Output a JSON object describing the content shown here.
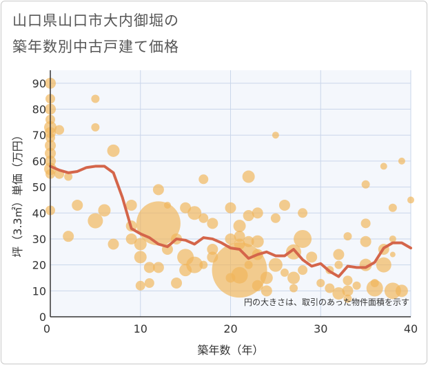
{
  "header": {
    "title_line1": "山口県山口市大内御堀の",
    "title_line2": "築年数別中古戸建て価格"
  },
  "colors": {
    "bubble": "#f0b55a",
    "line": "#d4654a",
    "grid": "#c9d6ea",
    "plot_bg": "#f4f7fc"
  },
  "chart_data": {
    "type": "scatter",
    "title": "山口県山口市大内御堀の築年数別中古戸建て価格",
    "xlabel": "築年数（年）",
    "ylabel": "坪（3.3㎡）単価（万円）",
    "xlim": [
      0,
      40
    ],
    "ylim": [
      0,
      95
    ],
    "xticks": [
      0,
      10,
      20,
      30,
      40
    ],
    "yticks": [
      0,
      10,
      20,
      30,
      40,
      50,
      60,
      70,
      80,
      90
    ],
    "note": "円の大きさは、取引のあった物件面積を示す",
    "bubbles": [
      {
        "x": 0,
        "y": 90,
        "s": 8
      },
      {
        "x": 0,
        "y": 84,
        "s": 7
      },
      {
        "x": 0,
        "y": 80,
        "s": 8
      },
      {
        "x": 0,
        "y": 76,
        "s": 7
      },
      {
        "x": 0,
        "y": 73,
        "s": 9
      },
      {
        "x": 0,
        "y": 71,
        "s": 8
      },
      {
        "x": 0,
        "y": 69,
        "s": 7
      },
      {
        "x": 0,
        "y": 66,
        "s": 8
      },
      {
        "x": 0,
        "y": 63,
        "s": 8
      },
      {
        "x": 0,
        "y": 60,
        "s": 8
      },
      {
        "x": 0,
        "y": 57,
        "s": 9
      },
      {
        "x": 0,
        "y": 55,
        "s": 7
      },
      {
        "x": 0,
        "y": 41,
        "s": 7
      },
      {
        "x": 1,
        "y": 72,
        "s": 7
      },
      {
        "x": 1,
        "y": 55,
        "s": 7
      },
      {
        "x": 2,
        "y": 54,
        "s": 6
      },
      {
        "x": 2,
        "y": 31,
        "s": 8
      },
      {
        "x": 3,
        "y": 43,
        "s": 8
      },
      {
        "x": 5,
        "y": 84,
        "s": 6
      },
      {
        "x": 5,
        "y": 73,
        "s": 6
      },
      {
        "x": 5,
        "y": 37,
        "s": 11
      },
      {
        "x": 6,
        "y": 41,
        "s": 9
      },
      {
        "x": 7,
        "y": 64,
        "s": 9
      },
      {
        "x": 7,
        "y": 28,
        "s": 8
      },
      {
        "x": 9,
        "y": 43,
        "s": 8
      },
      {
        "x": 9,
        "y": 35,
        "s": 8
      },
      {
        "x": 9,
        "y": 30,
        "s": 8
      },
      {
        "x": 10,
        "y": 28,
        "s": 9
      },
      {
        "x": 10,
        "y": 23,
        "s": 9
      },
      {
        "x": 10,
        "y": 12,
        "s": 7
      },
      {
        "x": 11,
        "y": 19,
        "s": 8
      },
      {
        "x": 11,
        "y": 13,
        "s": 7
      },
      {
        "x": 12,
        "y": 49,
        "s": 8
      },
      {
        "x": 12,
        "y": 36,
        "s": 32
      },
      {
        "x": 12,
        "y": 19,
        "s": 8
      },
      {
        "x": 13,
        "y": 43,
        "s": 5
      },
      {
        "x": 13,
        "y": 26,
        "s": 8
      },
      {
        "x": 14,
        "y": 30,
        "s": 8
      },
      {
        "x": 14,
        "y": 13,
        "s": 8
      },
      {
        "x": 15,
        "y": 42,
        "s": 8
      },
      {
        "x": 15,
        "y": 23,
        "s": 12
      },
      {
        "x": 15,
        "y": 18,
        "s": 9
      },
      {
        "x": 16,
        "y": 40,
        "s": 10
      },
      {
        "x": 16,
        "y": 20,
        "s": 12
      },
      {
        "x": 17,
        "y": 53,
        "s": 7
      },
      {
        "x": 17,
        "y": 38,
        "s": 7
      },
      {
        "x": 17,
        "y": 20,
        "s": 6
      },
      {
        "x": 18,
        "y": 36,
        "s": 8
      },
      {
        "x": 18,
        "y": 26,
        "s": 8
      },
      {
        "x": 18,
        "y": 23,
        "s": 8
      },
      {
        "x": 20,
        "y": 42,
        "s": 8
      },
      {
        "x": 20,
        "y": 30,
        "s": 8
      },
      {
        "x": 20,
        "y": 15,
        "s": 7
      },
      {
        "x": 21,
        "y": 35,
        "s": 9
      },
      {
        "x": 21,
        "y": 31,
        "s": 8
      },
      {
        "x": 21,
        "y": 28,
        "s": 8
      },
      {
        "x": 21,
        "y": 18,
        "s": 40
      },
      {
        "x": 21,
        "y": 16,
        "s": 12
      },
      {
        "x": 22,
        "y": 54,
        "s": 9
      },
      {
        "x": 22,
        "y": 39,
        "s": 8
      },
      {
        "x": 22,
        "y": 29,
        "s": 8
      },
      {
        "x": 22,
        "y": 20,
        "s": 6
      },
      {
        "x": 23,
        "y": 40,
        "s": 8
      },
      {
        "x": 23,
        "y": 29,
        "s": 9
      },
      {
        "x": 23,
        "y": 24,
        "s": 8
      },
      {
        "x": 23,
        "y": 12,
        "s": 8
      },
      {
        "x": 24,
        "y": 15,
        "s": 9
      },
      {
        "x": 24,
        "y": 10,
        "s": 8
      },
      {
        "x": 25,
        "y": 70,
        "s": 5
      },
      {
        "x": 25,
        "y": 38,
        "s": 7
      },
      {
        "x": 25,
        "y": 20,
        "s": 10
      },
      {
        "x": 26,
        "y": 43,
        "s": 8
      },
      {
        "x": 26,
        "y": 17,
        "s": 6
      },
      {
        "x": 27,
        "y": 25,
        "s": 11
      },
      {
        "x": 27,
        "y": 15,
        "s": 9
      },
      {
        "x": 27,
        "y": 11,
        "s": 6
      },
      {
        "x": 28,
        "y": 40,
        "s": 7
      },
      {
        "x": 28,
        "y": 30,
        "s": 13
      },
      {
        "x": 28,
        "y": 18,
        "s": 7
      },
      {
        "x": 29,
        "y": 23,
        "s": 8
      },
      {
        "x": 30,
        "y": 13,
        "s": 6
      },
      {
        "x": 31,
        "y": 18,
        "s": 6
      },
      {
        "x": 31,
        "y": 11,
        "s": 7
      },
      {
        "x": 32,
        "y": 24,
        "s": 8
      },
      {
        "x": 32,
        "y": 20,
        "s": 6
      },
      {
        "x": 32,
        "y": 9,
        "s": 9
      },
      {
        "x": 33,
        "y": 31,
        "s": 6
      },
      {
        "x": 33,
        "y": 14,
        "s": 7
      },
      {
        "x": 33,
        "y": 10,
        "s": 8
      },
      {
        "x": 33,
        "y": 7,
        "s": 6
      },
      {
        "x": 34,
        "y": 12,
        "s": 6
      },
      {
        "x": 35,
        "y": 51,
        "s": 6
      },
      {
        "x": 35,
        "y": 36,
        "s": 7
      },
      {
        "x": 35,
        "y": 29,
        "s": 8
      },
      {
        "x": 35,
        "y": 20,
        "s": 9
      },
      {
        "x": 36,
        "y": 11,
        "s": 12
      },
      {
        "x": 36,
        "y": 13,
        "s": 6
      },
      {
        "x": 37,
        "y": 58,
        "s": 5
      },
      {
        "x": 37,
        "y": 26,
        "s": 8
      },
      {
        "x": 37,
        "y": 20,
        "s": 11
      },
      {
        "x": 38,
        "y": 42,
        "s": 6
      },
      {
        "x": 38,
        "y": 30,
        "s": 5
      },
      {
        "x": 38,
        "y": 24,
        "s": 4
      },
      {
        "x": 38,
        "y": 10,
        "s": 12
      },
      {
        "x": 39,
        "y": 60,
        "s": 5
      },
      {
        "x": 39,
        "y": 10,
        "s": 9
      },
      {
        "x": 40,
        "y": 45,
        "s": 5
      }
    ],
    "trend": {
      "x": [
        0,
        1,
        2,
        3,
        4,
        5,
        6,
        7,
        8,
        9,
        10,
        11,
        12,
        13,
        14,
        15,
        16,
        17,
        18,
        19,
        20,
        21,
        22,
        23,
        24,
        25,
        26,
        27,
        28,
        29,
        30,
        31,
        32,
        33,
        34,
        35,
        36,
        37,
        38,
        39,
        40
      ],
      "y": [
        58,
        56.5,
        55.5,
        56,
        57.5,
        58,
        58,
        55.5,
        46,
        34,
        32,
        30.5,
        28,
        27,
        30,
        29.5,
        28,
        30.5,
        30,
        28.5,
        26.5,
        26,
        22.5,
        24,
        25,
        23.5,
        23.5,
        26,
        22,
        19.5,
        20.5,
        17.5,
        15.5,
        19.5,
        19,
        19,
        21,
        26.5,
        28.5,
        28.5,
        26.5
      ]
    }
  }
}
